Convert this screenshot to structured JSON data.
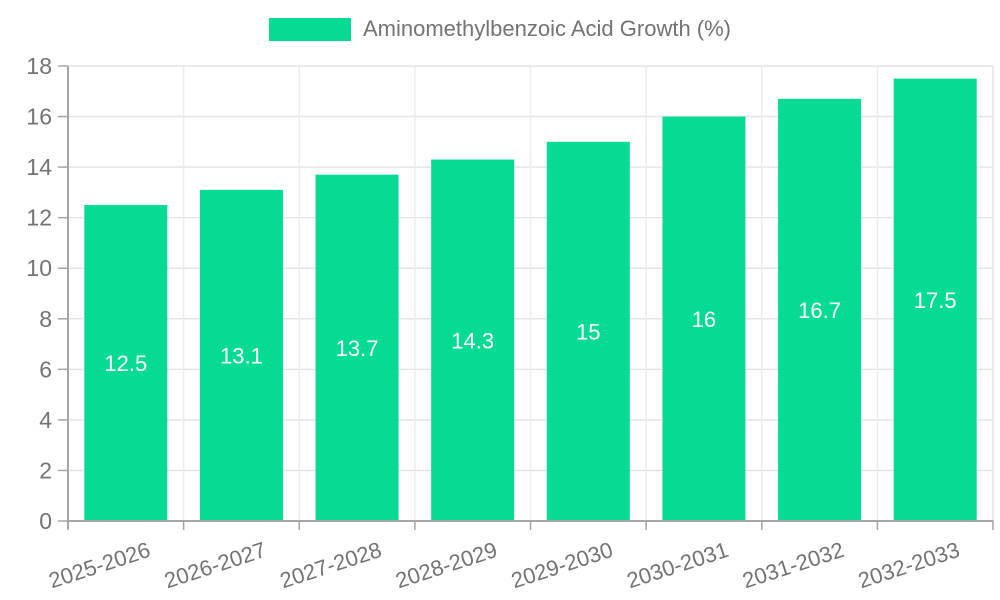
{
  "chart_data": {
    "type": "bar",
    "title": "Aminomethylbenzoic Acid Growth (%)",
    "legend_position": "top",
    "categories": [
      "2025-2026",
      "2026-2027",
      "2027-2028",
      "2028-2029",
      "2029-2030",
      "2030-2031",
      "2031-2032",
      "2032-2033"
    ],
    "values": [
      12.5,
      13.1,
      13.7,
      14.3,
      15,
      16,
      16.7,
      17.5
    ],
    "value_labels": [
      "12.5",
      "13.1",
      "13.7",
      "14.3",
      "15",
      "16",
      "16.7",
      "17.5"
    ],
    "xlabel": "",
    "ylabel": "",
    "ylim": [
      0,
      18
    ],
    "yticks": [
      0,
      2,
      4,
      6,
      8,
      10,
      12,
      14,
      16,
      18
    ],
    "grid": "horizontal and vertical light gray, right and top border lines",
    "colors": {
      "bar": "#06DB93",
      "grid": "#E4E4E4",
      "grid_vertical": "#ECECEC",
      "axis": "#A6A6A6",
      "tick_text": "#737373",
      "value_label_text": "#FFFFFF",
      "background": "#FFFFFF"
    }
  }
}
